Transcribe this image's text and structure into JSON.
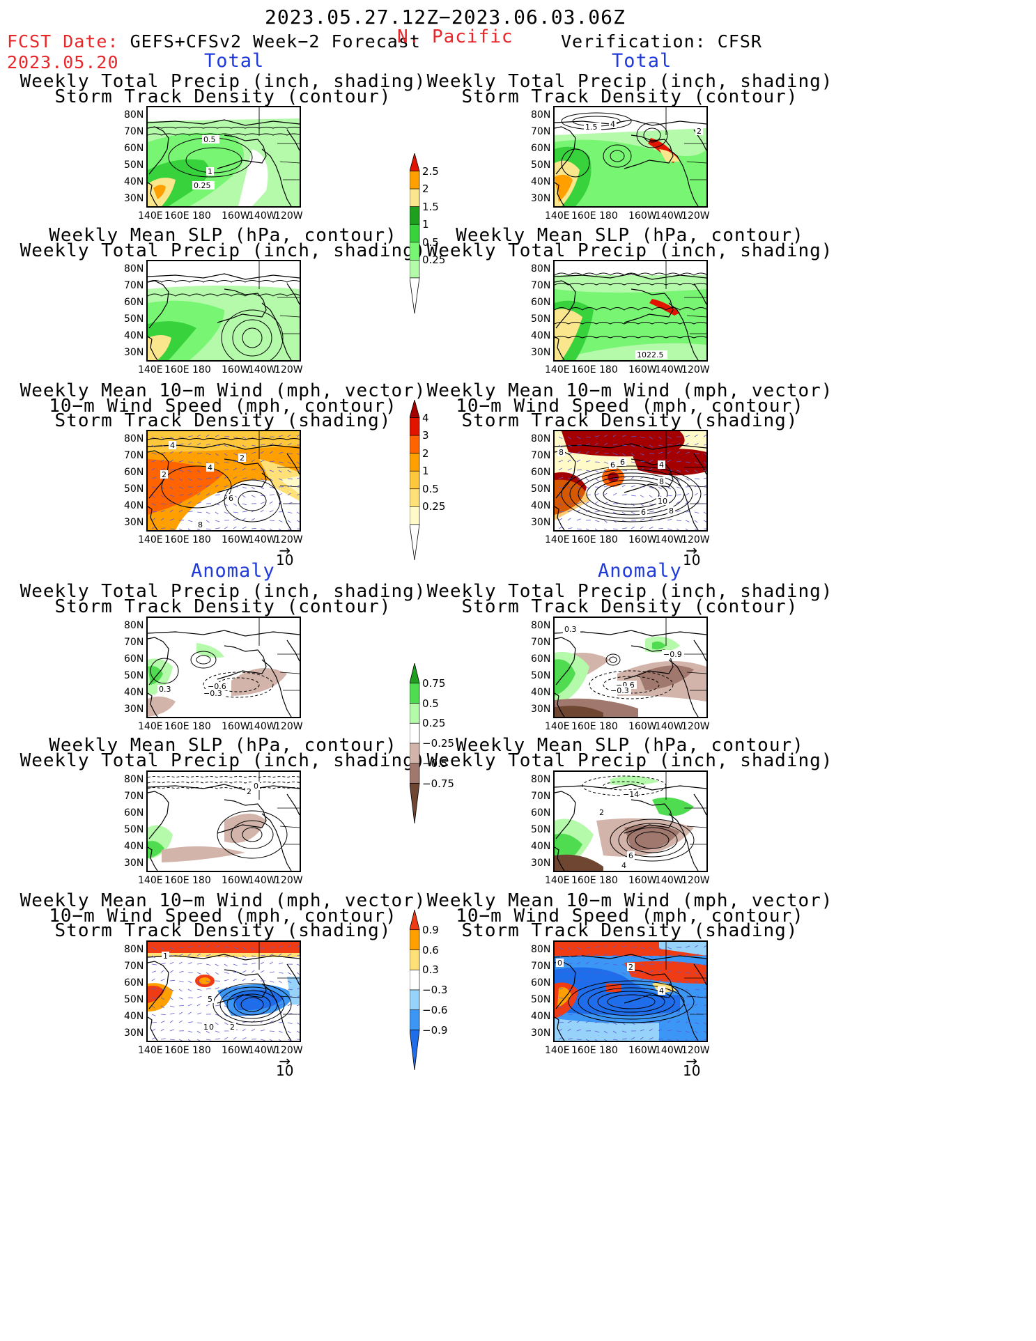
{
  "header": {
    "date_range": "2023.05.27.12Z−2023.06.03.06Z",
    "region": "N. Pacific",
    "fcst_label": "FCST Date: ",
    "model": "GEFS+CFSv2 Week−2 Forecast",
    "fcst_date": "2023.05.20",
    "verification": "Verification: CFSR"
  },
  "sections": {
    "total": "Total",
    "anomaly": "Anomaly"
  },
  "panel_titles": {
    "precip_storm": [
      "Weekly Total Precip (inch, shading)",
      "Storm Track Density (contour)"
    ],
    "slp_precip": [
      "Weekly Mean SLP (hPa, contour)",
      "Weekly Total Precip (inch, shading)"
    ],
    "wind_storm": [
      "Weekly Mean 10−m Wind (mph, vector)",
      "10−m Wind Speed (mph, contour)",
      "Storm Track Density (shading)"
    ]
  },
  "axes": {
    "lat": [
      "80N",
      "70N",
      "60N",
      "50N",
      "40N",
      "30N"
    ],
    "lon": [
      "140E",
      "160E",
      "180",
      "160W",
      "140W",
      "120W"
    ]
  },
  "vector_ref": "10",
  "colorbars": {
    "precip_total": [
      "2.5",
      "2",
      "1.5",
      "1",
      "0.5",
      "0.25"
    ],
    "storm_total": [
      "4",
      "3",
      "2",
      "1",
      "0.5",
      "0.25"
    ],
    "precip_anom": [
      "0.75",
      "0.5",
      "0.25",
      "−0.25",
      "−0.5",
      "−0.75"
    ],
    "storm_anom": [
      "0.9",
      "0.6",
      "0.3",
      "−0.3",
      "−0.6",
      "−0.9"
    ]
  },
  "contour_labels": {
    "l1": [
      "0.5",
      "1",
      "0.25"
    ],
    "r1": [
      "1.5",
      "4",
      "2"
    ],
    "r2": [
      "1022.5"
    ],
    "l3": [
      "4",
      "2",
      "4",
      "6",
      "8",
      "2"
    ],
    "r3": [
      "8",
      "6",
      "6",
      "4",
      "8",
      "10",
      "6",
      "8"
    ],
    "l4": [
      "0.3",
      "−0.6",
      "−0.3"
    ],
    "r4": [
      "0.3",
      "−0.9",
      "−0.6",
      "−0.3"
    ],
    "l5": [
      "0",
      "2"
    ],
    "r5": [
      "−14",
      "2",
      "4",
      "6"
    ],
    "l6": [
      "1",
      "5",
      "1",
      "0",
      "2"
    ],
    "r6": [
      "0",
      "2",
      "4"
    ]
  },
  "colors": {
    "precip": [
      "#b4faaa",
      "#78f573",
      "#37d23c",
      "#1ea01e",
      "#fae68c",
      "#ffa000",
      "#e11400"
    ],
    "storm": [
      "#fffac8",
      "#ffe178",
      "#ffc83c",
      "#ffa000",
      "#ff6400",
      "#e11400",
      "#a50000"
    ],
    "precip_anom": [
      "#6e4632",
      "#a0786e",
      "#d2b4aa",
      "#ffffff",
      "#b4faaa",
      "#50dc50",
      "#1ea01e"
    ],
    "storm_anom": [
      "#1e6eeb",
      "#3c96f5",
      "#96d2fa",
      "#ffffff",
      "#ffe178",
      "#ffa000",
      "#f03c14"
    ]
  }
}
